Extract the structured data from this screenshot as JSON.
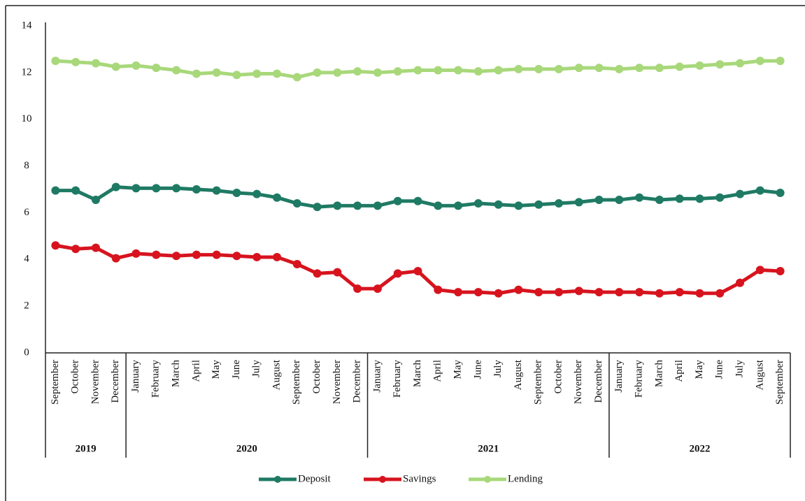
{
  "chart_data": {
    "type": "line",
    "categories": [
      "September",
      "October",
      "November",
      "December",
      "January",
      "February",
      "March",
      "April",
      "May",
      "June",
      "July",
      "August",
      "September",
      "October",
      "November",
      "December",
      "January",
      "February",
      "March",
      "April",
      "May",
      "June",
      "July",
      "August",
      "September",
      "October",
      "November",
      "December",
      "January",
      "February",
      "March",
      "April",
      "May",
      "June",
      "July",
      "August",
      "September"
    ],
    "groups": [
      {
        "label": "2019",
        "count": 4
      },
      {
        "label": "2020",
        "count": 12
      },
      {
        "label": "2021",
        "count": 12
      },
      {
        "label": "2022",
        "count": 9
      }
    ],
    "series": [
      {
        "name": "Deposit",
        "color": "#1f7a64",
        "values": [
          6.95,
          6.95,
          6.55,
          7.1,
          7.05,
          7.05,
          7.05,
          7.0,
          6.95,
          6.85,
          6.8,
          6.65,
          6.4,
          6.25,
          6.3,
          6.3,
          6.3,
          6.5,
          6.5,
          6.3,
          6.3,
          6.4,
          6.35,
          6.3,
          6.35,
          6.4,
          6.45,
          6.55,
          6.55,
          6.65,
          6.55,
          6.6,
          6.6,
          6.65,
          6.8,
          6.95,
          6.85
        ]
      },
      {
        "name": "Savings",
        "color": "#d7141e",
        "values": [
          4.6,
          4.45,
          4.5,
          4.05,
          4.25,
          4.2,
          4.15,
          4.2,
          4.2,
          4.15,
          4.1,
          4.1,
          3.8,
          3.4,
          3.45,
          2.75,
          2.75,
          3.4,
          3.5,
          2.7,
          2.6,
          2.6,
          2.55,
          2.7,
          2.6,
          2.6,
          2.65,
          2.6,
          2.6,
          2.6,
          2.55,
          2.6,
          2.55,
          2.55,
          3.0,
          3.55,
          3.5
        ]
      },
      {
        "name": "Lending",
        "color": "#a8d87a",
        "values": [
          12.5,
          12.45,
          12.4,
          12.25,
          12.3,
          12.2,
          12.1,
          11.95,
          12.0,
          11.9,
          11.95,
          11.95,
          11.8,
          12.0,
          12.0,
          12.05,
          12.0,
          12.05,
          12.1,
          12.1,
          12.1,
          12.05,
          12.1,
          12.15,
          12.15,
          12.15,
          12.2,
          12.2,
          12.15,
          12.2,
          12.2,
          12.25,
          12.3,
          12.35,
          12.4,
          12.5,
          12.5
        ]
      }
    ],
    "ylim": [
      0,
      14
    ],
    "yticks": [
      0,
      2,
      4,
      6,
      8,
      10,
      12,
      14
    ],
    "grid": false,
    "legend": "bottom"
  }
}
